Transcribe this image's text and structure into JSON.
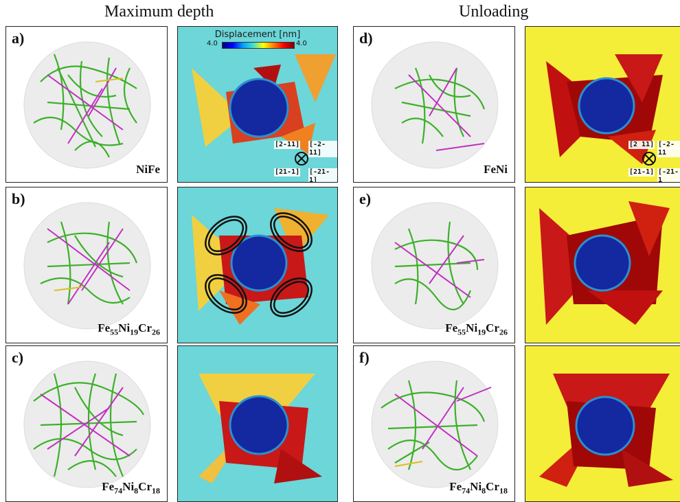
{
  "titles": {
    "left": "Maximum depth",
    "right": "Unloading"
  },
  "panels": {
    "a": {
      "label": "a)",
      "alloy": "NiFe"
    },
    "b": {
      "label": "b)",
      "alloy_parts": [
        "Fe",
        "55",
        "Ni",
        "19",
        "Cr",
        "26"
      ]
    },
    "c": {
      "label": "c)",
      "alloy_parts": [
        "Fe",
        "74",
        "Ni",
        "8",
        "Cr",
        "18"
      ]
    },
    "d": {
      "label": "d)",
      "alloy": "FeNi"
    },
    "e": {
      "label": "e)",
      "alloy_parts": [
        "Fe",
        "55",
        "Ni",
        "19",
        "Cr",
        "26"
      ]
    },
    "f": {
      "label": "f)",
      "alloy_parts": [
        "Fe",
        "74",
        "Ni",
        "8",
        "Cr",
        "18"
      ]
    }
  },
  "colorbar": {
    "title": "Displacement [nm]",
    "min": "4.0",
    "max": "4.0"
  },
  "directions": {
    "up_left": "[2-11]",
    "up_right": "[-2-11]",
    "down_left": "[21-1]",
    "down_right": "[-21-1]"
  },
  "directions_right": {
    "up_left": "[2 11]",
    "up_right": "[-2-11",
    "down_left": "[21-1]",
    "down_right": "[-21-1"
  }
}
